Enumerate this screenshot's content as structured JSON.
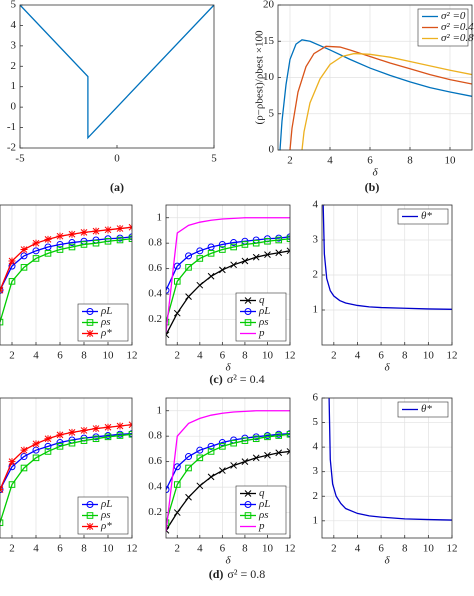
{
  "captions": [
    {
      "label": "(a)"
    },
    {
      "label": "(b)"
    },
    {
      "label": "(c)",
      "text": "σ² = 0.4"
    },
    {
      "label": "(d)",
      "text": "σ² = 0.8"
    }
  ],
  "chart_data": [
    {
      "type": "line",
      "xlim": [
        -5,
        5
      ],
      "ylim": [
        -2,
        5
      ],
      "xticks": [
        -5,
        0,
        5
      ],
      "yticks": [
        -2,
        -1,
        0,
        1,
        2,
        3,
        4,
        5
      ],
      "grid": false,
      "series": [
        {
          "color": "#0072bd",
          "x": [
            -5,
            -1.5,
            -1.5,
            5
          ],
          "values": [
            5,
            1.5,
            -1.5,
            5
          ]
        }
      ]
    },
    {
      "type": "line",
      "xlabel": "δ",
      "ylabel": "(ρ−ρbest)/ρbest ×100",
      "xlim": [
        1.4,
        11.1
      ],
      "ylim": [
        0,
        20
      ],
      "xticks": [
        2,
        4,
        6,
        8,
        10
      ],
      "yticks": [
        0,
        5,
        10,
        15,
        20
      ],
      "grid": true,
      "legend": "upper right",
      "series": [
        {
          "name": "σ² =0",
          "color": "#0072bd",
          "x": [
            1.5,
            1.6,
            1.8,
            2,
            2.3,
            2.6,
            3,
            4,
            5,
            6,
            7,
            8,
            9,
            10,
            11.1
          ],
          "values": [
            0,
            4,
            9,
            12.5,
            14.6,
            15.2,
            15,
            13.8,
            12.5,
            11.3,
            10.3,
            9.4,
            8.6,
            8,
            7.4
          ]
        },
        {
          "name": "σ² =0.4",
          "color": "#d95319",
          "x": [
            2,
            2.1,
            2.4,
            2.8,
            3.2,
            3.8,
            4.5,
            5,
            6,
            7,
            8,
            9,
            10,
            11.1
          ],
          "values": [
            0,
            3,
            8,
            11.5,
            13.3,
            14.3,
            14.2,
            13.8,
            12.9,
            12,
            11.2,
            10.4,
            9.7,
            9.1
          ]
        },
        {
          "name": "σ² =0.8",
          "color": "#edb120",
          "x": [
            2.6,
            2.7,
            3,
            3.5,
            4,
            4.6,
            5.2,
            6,
            7,
            8,
            9,
            10,
            11.1
          ],
          "values": [
            0,
            2.5,
            6.5,
            9.8,
            11.8,
            12.9,
            13.3,
            13.2,
            12.8,
            12.2,
            11.6,
            11,
            10.4
          ]
        }
      ]
    },
    {
      "type": "line",
      "xlim": [
        1,
        12
      ],
      "ylim": [
        0,
        1.1
      ],
      "xticks": [
        2,
        4,
        6,
        8,
        10,
        12
      ],
      "grid": true,
      "legend": "lower right",
      "x": [
        1,
        2,
        3,
        4,
        5,
        6,
        7,
        8,
        9,
        10,
        11,
        12
      ],
      "series": [
        {
          "name": "ρL",
          "color": "#0000ff",
          "marker": "circle",
          "values": [
            0.43,
            0.62,
            0.7,
            0.74,
            0.77,
            0.79,
            0.805,
            0.815,
            0.825,
            0.835,
            0.84,
            0.85
          ]
        },
        {
          "name": "ρs",
          "color": "#00cc00",
          "marker": "square",
          "values": [
            0.18,
            0.5,
            0.61,
            0.68,
            0.72,
            0.75,
            0.77,
            0.79,
            0.8,
            0.815,
            0.825,
            0.835
          ]
        },
        {
          "name": "ρ*",
          "color": "#ff0000",
          "marker": "star",
          "values": [
            0.43,
            0.66,
            0.75,
            0.8,
            0.83,
            0.855,
            0.87,
            0.885,
            0.895,
            0.905,
            0.915,
            0.925
          ]
        }
      ]
    },
    {
      "type": "line",
      "xlabel": "δ",
      "xlim": [
        1,
        12
      ],
      "ylim": [
        0,
        1.1
      ],
      "xticks": [
        2,
        4,
        6,
        8,
        10,
        12
      ],
      "yticks": [
        0.2,
        0.4,
        0.6,
        0.8,
        1
      ],
      "grid": true,
      "legend": "lower right",
      "x": [
        1,
        2,
        3,
        4,
        5,
        6,
        7,
        8,
        9,
        10,
        11,
        12
      ],
      "series": [
        {
          "name": "q",
          "color": "#000000",
          "marker": "x",
          "values": [
            0.08,
            0.25,
            0.38,
            0.47,
            0.54,
            0.59,
            0.63,
            0.66,
            0.69,
            0.71,
            0.725,
            0.74
          ]
        },
        {
          "name": "ρL",
          "color": "#0000ff",
          "marker": "circle",
          "values": [
            0.43,
            0.62,
            0.7,
            0.74,
            0.77,
            0.79,
            0.805,
            0.815,
            0.825,
            0.835,
            0.84,
            0.85
          ]
        },
        {
          "name": "ρs",
          "color": "#00cc00",
          "marker": "square",
          "values": [
            0.18,
            0.5,
            0.61,
            0.68,
            0.72,
            0.75,
            0.77,
            0.79,
            0.8,
            0.815,
            0.825,
            0.835
          ]
        },
        {
          "name": "p",
          "color": "#ff00ff",
          "values": [
            0.1,
            0.88,
            0.94,
            0.965,
            0.98,
            0.99,
            0.995,
            1,
            1,
            1,
            1,
            1
          ]
        }
      ]
    },
    {
      "type": "line",
      "xlabel": "δ",
      "xlim": [
        1,
        12
      ],
      "ylim": [
        0,
        4
      ],
      "xticks": [
        2,
        4,
        6,
        8,
        10,
        12
      ],
      "yticks": [
        1,
        2,
        3,
        4
      ],
      "grid": true,
      "legend": "upper right",
      "series": [
        {
          "name": "θ*",
          "color": "#0000cc",
          "x": [
            1.1,
            1.2,
            1.4,
            1.7,
            2,
            2.5,
            3,
            4,
            5,
            6,
            8,
            10,
            12
          ],
          "values": [
            4,
            2.6,
            1.9,
            1.55,
            1.4,
            1.27,
            1.2,
            1.13,
            1.09,
            1.07,
            1.05,
            1.03,
            1.02
          ]
        }
      ]
    },
    {
      "type": "line",
      "xlim": [
        1,
        12
      ],
      "ylim": [
        0,
        1.1
      ],
      "xticks": [
        2,
        4,
        6,
        8,
        10,
        12
      ],
      "grid": true,
      "legend": "lower right",
      "x": [
        1,
        2,
        3,
        4,
        5,
        6,
        7,
        8,
        9,
        10,
        11,
        12
      ],
      "series": [
        {
          "name": "ρL",
          "color": "#0000ff",
          "marker": "circle",
          "values": [
            0.38,
            0.56,
            0.64,
            0.69,
            0.72,
            0.75,
            0.77,
            0.785,
            0.795,
            0.805,
            0.815,
            0.82
          ]
        },
        {
          "name": "ρs",
          "color": "#00cc00",
          "marker": "square",
          "values": [
            0.12,
            0.42,
            0.55,
            0.63,
            0.68,
            0.72,
            0.745,
            0.765,
            0.78,
            0.795,
            0.805,
            0.815
          ]
        },
        {
          "name": "ρ*",
          "color": "#ff0000",
          "marker": "star",
          "values": [
            0.38,
            0.6,
            0.69,
            0.74,
            0.78,
            0.81,
            0.83,
            0.845,
            0.86,
            0.87,
            0.88,
            0.89
          ]
        }
      ]
    },
    {
      "type": "line",
      "xlabel": "δ",
      "xlim": [
        1,
        12
      ],
      "ylim": [
        0,
        1.1
      ],
      "xticks": [
        2,
        4,
        6,
        8,
        10,
        12
      ],
      "yticks": [
        0.2,
        0.4,
        0.6,
        0.8,
        1
      ],
      "grid": true,
      "legend": "lower right",
      "x": [
        1,
        2,
        3,
        4,
        5,
        6,
        7,
        8,
        9,
        10,
        11,
        12
      ],
      "series": [
        {
          "name": "q",
          "color": "#000000",
          "marker": "x",
          "values": [
            0.06,
            0.2,
            0.32,
            0.41,
            0.48,
            0.53,
            0.57,
            0.6,
            0.63,
            0.65,
            0.67,
            0.68
          ]
        },
        {
          "name": "ρL",
          "color": "#0000ff",
          "marker": "circle",
          "values": [
            0.38,
            0.56,
            0.64,
            0.69,
            0.72,
            0.75,
            0.77,
            0.785,
            0.795,
            0.805,
            0.815,
            0.82
          ]
        },
        {
          "name": "ρs",
          "color": "#00cc00",
          "marker": "square",
          "values": [
            0.12,
            0.42,
            0.55,
            0.63,
            0.68,
            0.72,
            0.745,
            0.765,
            0.78,
            0.795,
            0.805,
            0.815
          ]
        },
        {
          "name": "p",
          "color": "#ff00ff",
          "values": [
            0.05,
            0.8,
            0.9,
            0.94,
            0.965,
            0.98,
            0.99,
            0.995,
            1,
            1,
            1,
            1
          ]
        }
      ]
    },
    {
      "type": "line",
      "xlabel": "δ",
      "xlim": [
        1,
        12
      ],
      "ylim": [
        0.3,
        6
      ],
      "xticks": [
        2,
        4,
        6,
        8,
        10,
        12
      ],
      "yticks": [
        1,
        2,
        3,
        4,
        5,
        6
      ],
      "grid": true,
      "legend": "upper right",
      "series": [
        {
          "name": "θ*",
          "color": "#0000cc",
          "x": [
            1.6,
            1.7,
            1.9,
            2.2,
            2.6,
            3,
            4,
            5,
            6,
            8,
            10,
            12
          ],
          "values": [
            6,
            3.5,
            2.5,
            2,
            1.7,
            1.5,
            1.3,
            1.2,
            1.15,
            1.08,
            1.05,
            1.03
          ]
        }
      ]
    }
  ]
}
